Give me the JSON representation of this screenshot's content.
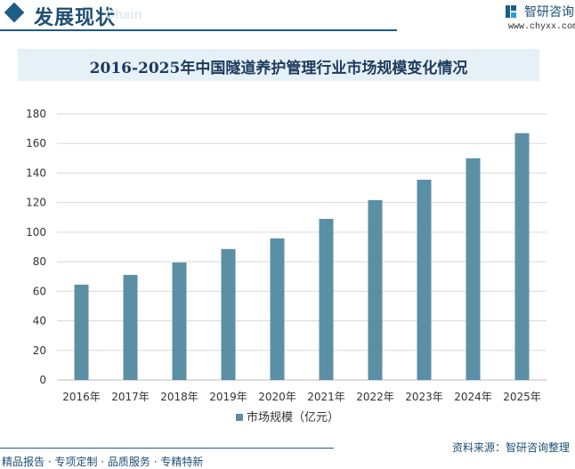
{
  "header": {
    "title": "发展现状",
    "ghost_text": "Chain",
    "logo_text": "智研咨询",
    "logo_url": "www.chyxx.com"
  },
  "chart_data": {
    "type": "bar",
    "title": "2016-2025年中国隧道养护管理行业市场规模变化情况",
    "categories": [
      "2016年",
      "2017年",
      "2018年",
      "2019年",
      "2020年",
      "2021年",
      "2022年",
      "2023年",
      "2024年",
      "2025年"
    ],
    "series": [
      {
        "name": "市场规模（亿元）",
        "values": [
          64.5,
          71.1,
          79.5,
          88.6,
          95.8,
          109,
          121.7,
          135.5,
          150,
          167
        ],
        "color": "#5b8fa5"
      }
    ],
    "yticks": [
      0,
      20,
      40,
      60,
      80,
      100,
      120,
      140,
      160,
      180
    ],
    "ylim": [
      0,
      180
    ],
    "grid": true,
    "legend": "bottom"
  },
  "footer": {
    "source": "资料来源：智研咨询整理",
    "slogan": "精品报告 · 专项定制 · 品质服务 · 专精特新"
  }
}
